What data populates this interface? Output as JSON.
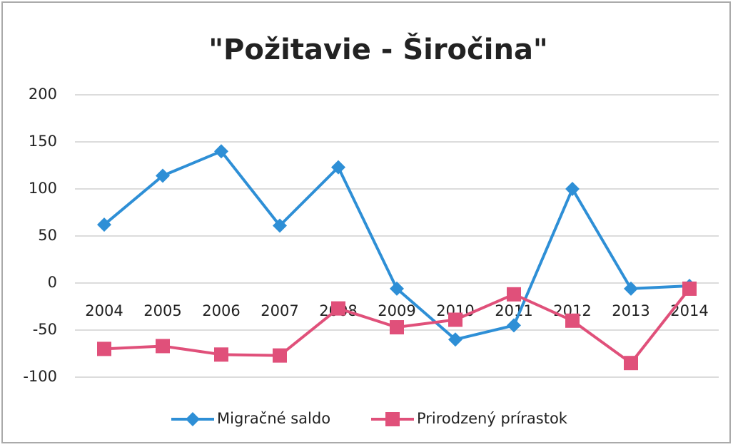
{
  "chart_data": {
    "type": "line",
    "title": "\"Požitavie - Širočina\"",
    "categories": [
      "2004",
      "2005",
      "2006",
      "2007",
      "2008",
      "2009",
      "2010",
      "2011",
      "2012",
      "2013",
      "2014"
    ],
    "series": [
      {
        "name": "Migračné saldo",
        "color": "#2e8fd6",
        "marker": "diamond",
        "values": [
          62,
          114,
          140,
          61,
          123,
          -6,
          -60,
          -45,
          100,
          -6,
          -3
        ]
      },
      {
        "name": "Prirodzený prírastok",
        "color": "#e0507a",
        "marker": "square",
        "values": [
          -70,
          -67,
          -76,
          -77,
          -27,
          -47,
          -39,
          -12,
          -40,
          -85,
          -6
        ]
      }
    ],
    "ylim": [
      -100,
      200
    ],
    "yticks": [
      -100,
      -50,
      0,
      50,
      100,
      150,
      200
    ],
    "grid": true,
    "legend": "bottom"
  }
}
